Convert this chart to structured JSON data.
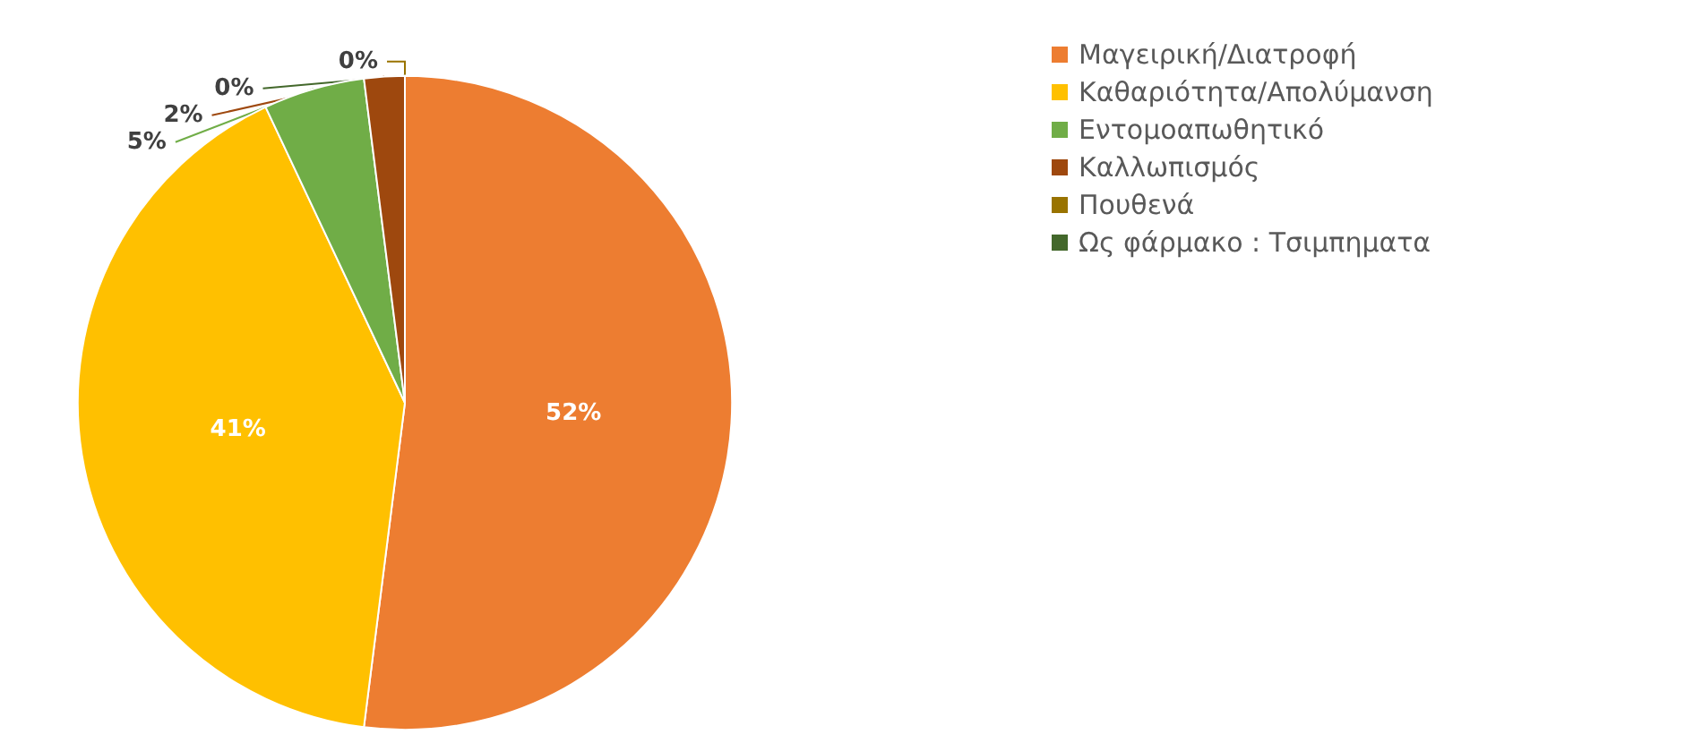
{
  "chart_data": {
    "type": "pie",
    "categories": [
      "Μαγειρική/Διατροφή",
      "Καθαριότητα/Απολύμανση",
      "Εντομοαπωθητικό",
      "Καλλωπισμός",
      "Πουθενά",
      "Ως φάρμακο : Τσιμπηματα"
    ],
    "values": [
      52,
      41,
      5,
      2,
      0,
      0
    ],
    "colors": [
      "#ed7d31",
      "#ffc000",
      "#70ad47",
      "#9e480e",
      "#997300",
      "#43682b"
    ],
    "value_labels": [
      "52%",
      "41%",
      "5%",
      "2%",
      "0%",
      "0%"
    ],
    "legend": "right"
  }
}
